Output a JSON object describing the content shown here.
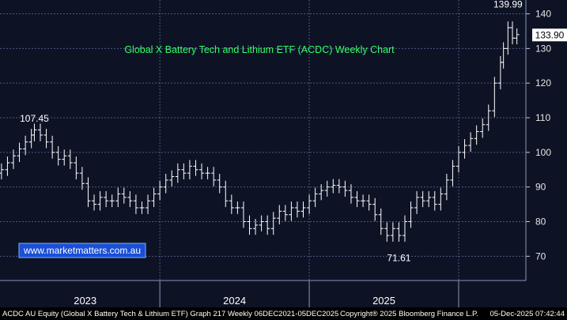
{
  "chart_data": {
    "type": "ohlc",
    "title": "Global X Battery Tech and Lithium ETF (ACDC) Weekly Chart",
    "ylim": [
      63,
      144
    ],
    "y_ticks": [
      70,
      80,
      90,
      100,
      110,
      120,
      130,
      140
    ],
    "x_range": [
      2022.43,
      2025.95
    ],
    "year_labels": [
      {
        "label": "2023",
        "x": 2023.0
      },
      {
        "label": "2024",
        "x": 2024.0
      },
      {
        "label": "2025",
        "x": 2025.0
      }
    ],
    "year_dividers": [
      2023.5,
      2024.5,
      2025.5
    ],
    "annotations": {
      "high_2023": {
        "text": "107.45",
        "x": 2022.66,
        "y": 107.45
      },
      "low_2025": {
        "text": "71.61",
        "x": 2025.1,
        "y": 71.61
      },
      "high_2025": {
        "text": "139.99",
        "x": 2025.83,
        "y": 139.99
      }
    },
    "last_price": "133.90",
    "last_value": 133.9,
    "watermark": "www.marketmatters.com.au",
    "series": [
      {
        "x": 2022.44,
        "y": 95
      },
      {
        "x": 2022.48,
        "y": 97
      },
      {
        "x": 2022.52,
        "y": 99
      },
      {
        "x": 2022.56,
        "y": 101
      },
      {
        "x": 2022.6,
        "y": 103
      },
      {
        "x": 2022.64,
        "y": 105
      },
      {
        "x": 2022.66,
        "y": 106.5
      },
      {
        "x": 2022.7,
        "y": 105
      },
      {
        "x": 2022.74,
        "y": 103
      },
      {
        "x": 2022.78,
        "y": 100
      },
      {
        "x": 2022.82,
        "y": 98
      },
      {
        "x": 2022.86,
        "y": 99
      },
      {
        "x": 2022.9,
        "y": 97
      },
      {
        "x": 2022.94,
        "y": 94
      },
      {
        "x": 2022.98,
        "y": 91
      },
      {
        "x": 2023.02,
        "y": 86
      },
      {
        "x": 2023.06,
        "y": 85
      },
      {
        "x": 2023.1,
        "y": 87
      },
      {
        "x": 2023.14,
        "y": 86
      },
      {
        "x": 2023.18,
        "y": 86
      },
      {
        "x": 2023.22,
        "y": 88
      },
      {
        "x": 2023.26,
        "y": 87
      },
      {
        "x": 2023.3,
        "y": 86
      },
      {
        "x": 2023.34,
        "y": 84
      },
      {
        "x": 2023.38,
        "y": 84
      },
      {
        "x": 2023.42,
        "y": 86
      },
      {
        "x": 2023.46,
        "y": 88
      },
      {
        "x": 2023.5,
        "y": 90
      },
      {
        "x": 2023.54,
        "y": 92
      },
      {
        "x": 2023.58,
        "y": 93
      },
      {
        "x": 2023.62,
        "y": 95
      },
      {
        "x": 2023.66,
        "y": 94
      },
      {
        "x": 2023.7,
        "y": 96
      },
      {
        "x": 2023.74,
        "y": 95
      },
      {
        "x": 2023.78,
        "y": 94
      },
      {
        "x": 2023.82,
        "y": 94
      },
      {
        "x": 2023.86,
        "y": 92
      },
      {
        "x": 2023.9,
        "y": 90
      },
      {
        "x": 2023.94,
        "y": 86
      },
      {
        "x": 2023.98,
        "y": 84
      },
      {
        "x": 2024.02,
        "y": 84
      },
      {
        "x": 2024.06,
        "y": 80
      },
      {
        "x": 2024.1,
        "y": 78
      },
      {
        "x": 2024.14,
        "y": 79
      },
      {
        "x": 2024.18,
        "y": 80
      },
      {
        "x": 2024.22,
        "y": 78
      },
      {
        "x": 2024.26,
        "y": 81
      },
      {
        "x": 2024.3,
        "y": 83
      },
      {
        "x": 2024.34,
        "y": 82
      },
      {
        "x": 2024.38,
        "y": 84
      },
      {
        "x": 2024.42,
        "y": 83
      },
      {
        "x": 2024.46,
        "y": 84
      },
      {
        "x": 2024.5,
        "y": 86
      },
      {
        "x": 2024.54,
        "y": 88
      },
      {
        "x": 2024.58,
        "y": 89
      },
      {
        "x": 2024.62,
        "y": 90
      },
      {
        "x": 2024.66,
        "y": 90.5
      },
      {
        "x": 2024.7,
        "y": 90
      },
      {
        "x": 2024.74,
        "y": 89
      },
      {
        "x": 2024.78,
        "y": 87
      },
      {
        "x": 2024.82,
        "y": 86
      },
      {
        "x": 2024.86,
        "y": 86
      },
      {
        "x": 2024.9,
        "y": 85
      },
      {
        "x": 2024.94,
        "y": 82
      },
      {
        "x": 2024.98,
        "y": 78
      },
      {
        "x": 2025.02,
        "y": 76
      },
      {
        "x": 2025.06,
        "y": 78
      },
      {
        "x": 2025.1,
        "y": 76
      },
      {
        "x": 2025.14,
        "y": 80
      },
      {
        "x": 2025.18,
        "y": 84
      },
      {
        "x": 2025.22,
        "y": 87
      },
      {
        "x": 2025.26,
        "y": 86
      },
      {
        "x": 2025.3,
        "y": 87
      },
      {
        "x": 2025.34,
        "y": 85
      },
      {
        "x": 2025.38,
        "y": 88
      },
      {
        "x": 2025.42,
        "y": 92
      },
      {
        "x": 2025.46,
        "y": 96
      },
      {
        "x": 2025.5,
        "y": 100
      },
      {
        "x": 2025.54,
        "y": 102
      },
      {
        "x": 2025.58,
        "y": 104
      },
      {
        "x": 2025.62,
        "y": 106
      },
      {
        "x": 2025.66,
        "y": 108
      },
      {
        "x": 2025.7,
        "y": 112
      },
      {
        "x": 2025.74,
        "y": 120
      },
      {
        "x": 2025.78,
        "y": 126
      },
      {
        "x": 2025.8,
        "y": 130
      },
      {
        "x": 2025.83,
        "y": 136
      },
      {
        "x": 2025.86,
        "y": 133
      },
      {
        "x": 2025.89,
        "y": 134
      }
    ]
  },
  "footer": {
    "left": "ACDC AU Equity (Global X Battery Tech & Lithium ETF) Graph 217 Weekly 06DEC2021-05DEC2025",
    "center": "Copyright® 2025 Bloomberg Finance L.P.",
    "right": "05-Dec-2025 07:42:44"
  },
  "colors": {
    "background": "#0d1325",
    "grid": "#4a5a82",
    "bars": "#ffffff",
    "title": "#33ff66",
    "watermark_box": "#1a4fd6"
  }
}
